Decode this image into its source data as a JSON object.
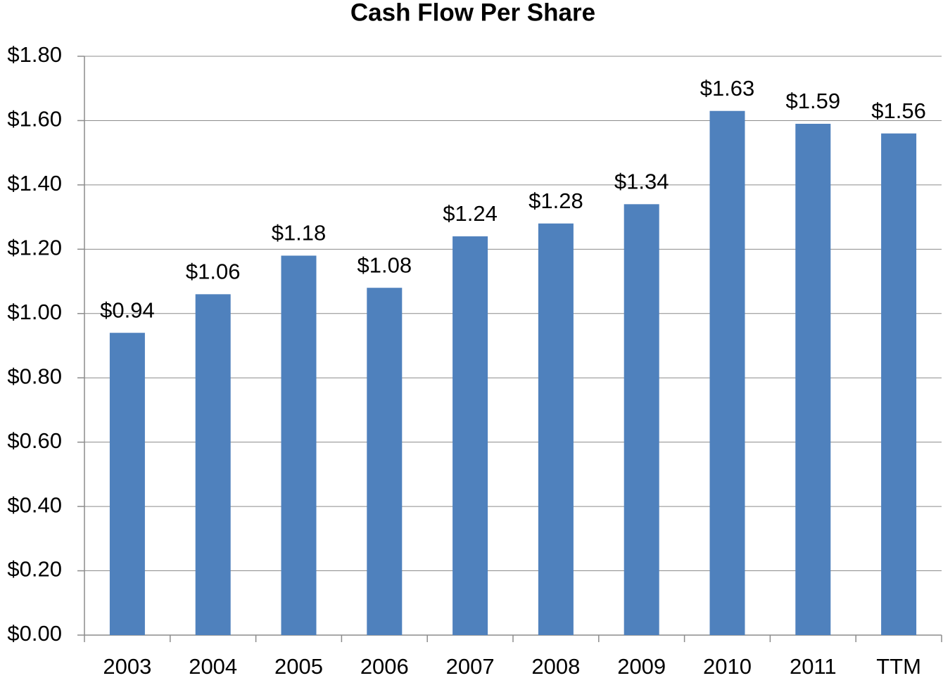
{
  "chart_data": {
    "type": "bar",
    "title": "Cash Flow Per Share",
    "categories": [
      "2003",
      "2004",
      "2005",
      "2006",
      "2007",
      "2008",
      "2009",
      "2010",
      "2011",
      "TTM"
    ],
    "values": [
      0.94,
      1.06,
      1.18,
      1.08,
      1.24,
      1.28,
      1.34,
      1.63,
      1.59,
      1.56
    ],
    "value_labels": [
      "$0.94",
      "$1.06",
      "$1.18",
      "$1.08",
      "$1.24",
      "$1.28",
      "$1.34",
      "$1.63",
      "$1.59",
      "$1.56"
    ],
    "color": "#4f81bd",
    "ylim": [
      0,
      1.8
    ],
    "yticks": [
      {
        "value": 0,
        "label": "$0.00"
      },
      {
        "value": 0.2,
        "label": "$0.20"
      },
      {
        "value": 0.4,
        "label": "$0.40"
      },
      {
        "value": 0.6,
        "label": "$0.60"
      },
      {
        "value": 0.8,
        "label": "$0.80"
      },
      {
        "value": 1.0,
        "label": "$1.00"
      },
      {
        "value": 1.2,
        "label": "$1.20"
      },
      {
        "value": 1.4,
        "label": "$1.40"
      },
      {
        "value": 1.6,
        "label": "$1.60"
      },
      {
        "value": 1.8,
        "label": "$1.80"
      }
    ],
    "grid": true
  }
}
